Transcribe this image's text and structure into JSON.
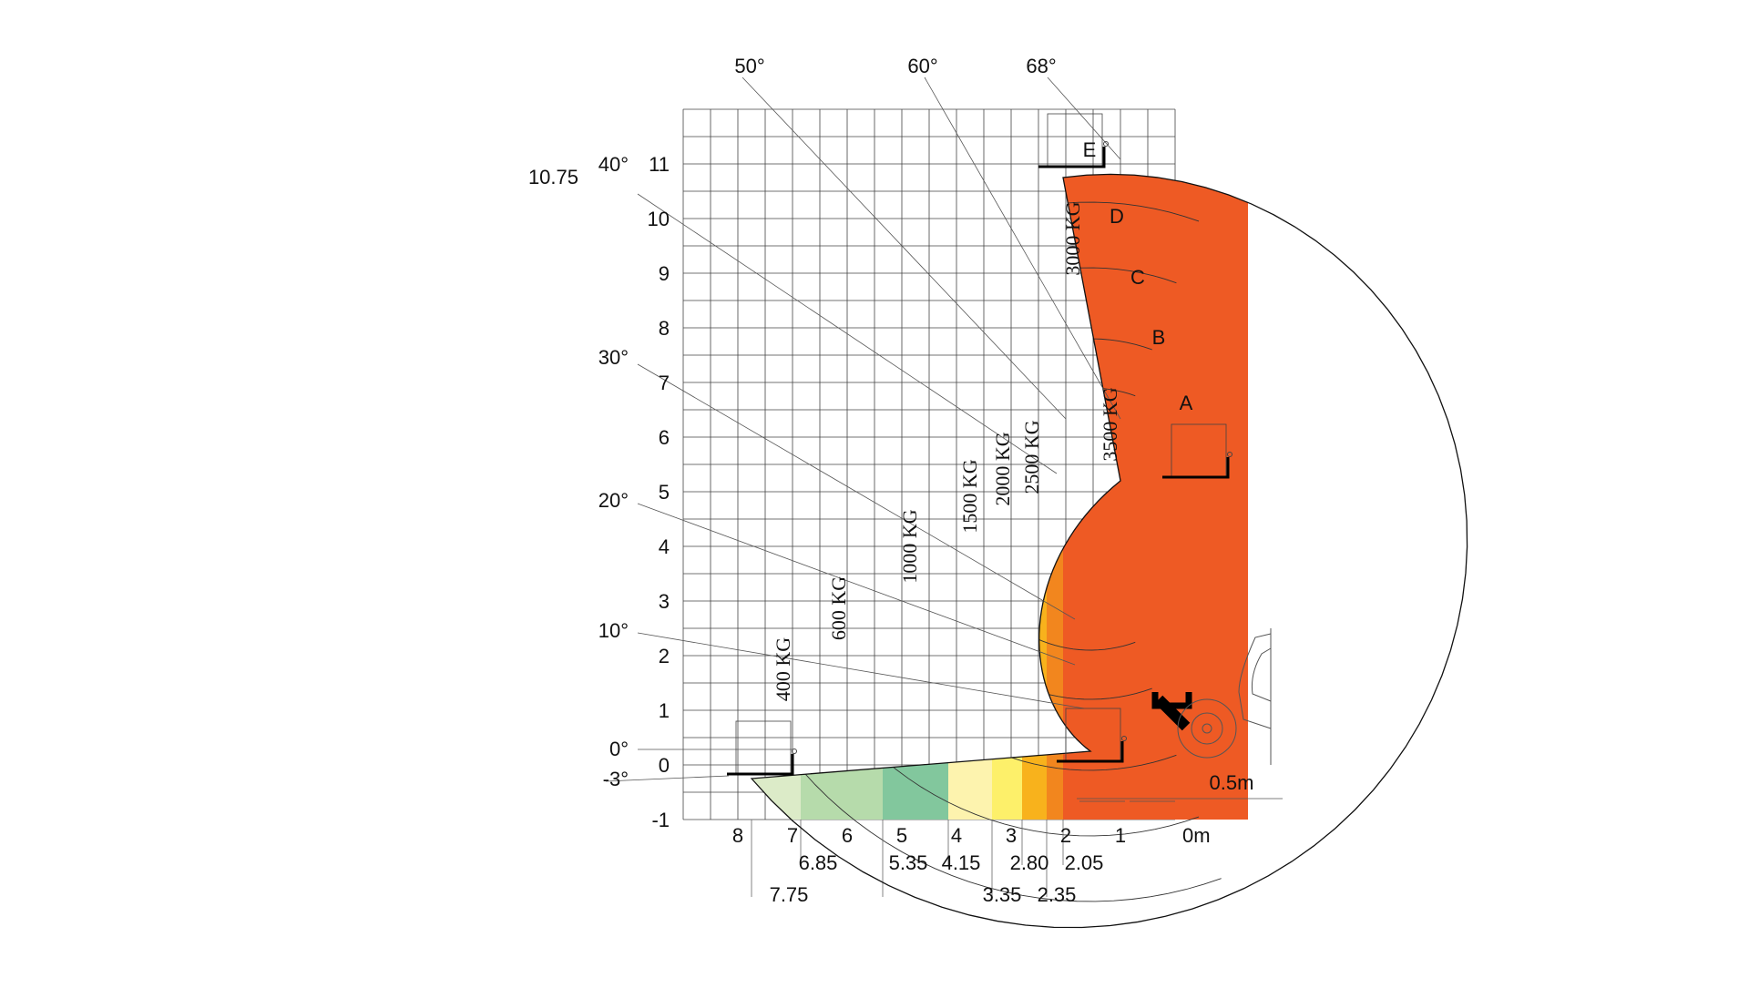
{
  "chart_data": {
    "type": "load-chart",
    "x_axis": {
      "unit_label": "0m",
      "ticks": [
        "8",
        "7",
        "6",
        "5",
        "4",
        "3",
        "2",
        "1"
      ],
      "reach_marks": [
        "7.75",
        "6.85",
        "5.35",
        "4.15",
        "3.35",
        "2.80",
        "2.35",
        "2.05"
      ],
      "range": [
        -1,
        9
      ]
    },
    "y_axis": {
      "ticks": [
        "-1",
        "0",
        "1",
        "2",
        "3",
        "4",
        "5",
        "6",
        "7",
        "8",
        "9",
        "10",
        "11"
      ],
      "max_height_label": "10.75",
      "range": [
        -1,
        12
      ]
    },
    "boom_angles": [
      {
        "label": "-3°",
        "deg": -3
      },
      {
        "label": "0°",
        "deg": 0
      },
      {
        "label": "10°",
        "deg": 10
      },
      {
        "label": "20°",
        "deg": 20
      },
      {
        "label": "30°",
        "deg": 30
      },
      {
        "label": "40°",
        "deg": 40
      },
      {
        "label": "50°",
        "deg": 50
      },
      {
        "label": "60°",
        "deg": 60
      },
      {
        "label": "68°",
        "deg": 68
      }
    ],
    "extension_marks": [
      "A",
      "B",
      "C",
      "D",
      "E"
    ],
    "load_zones": [
      {
        "label": "400 KG",
        "reach_from": 7.75,
        "reach_to": 6.85,
        "color": "#dcebc8"
      },
      {
        "label": "600 KG",
        "reach_from": 6.85,
        "reach_to": 5.35,
        "color": "#b6dbab"
      },
      {
        "label": "1000 KG",
        "reach_from": 5.35,
        "reach_to": 4.15,
        "color": "#82c79d"
      },
      {
        "label": "1500 KG",
        "reach_from": 4.15,
        "reach_to": 3.35,
        "color": "#fdf3ae"
      },
      {
        "label": "2000 KG",
        "reach_from": 3.35,
        "reach_to": 2.8,
        "color": "#fdf06a"
      },
      {
        "label": "2500 KG",
        "reach_from": 2.8,
        "reach_to": 2.35,
        "color": "#f8b21c"
      },
      {
        "label": "3000 KG",
        "reach_from": 2.35,
        "reach_to": 2.05,
        "color": "#f2861e"
      },
      {
        "label": "3500 KG",
        "reach_from": 2.05,
        "reach_to": 0,
        "color": "#ee5a24"
      }
    ],
    "scale_label": "0.5m"
  }
}
